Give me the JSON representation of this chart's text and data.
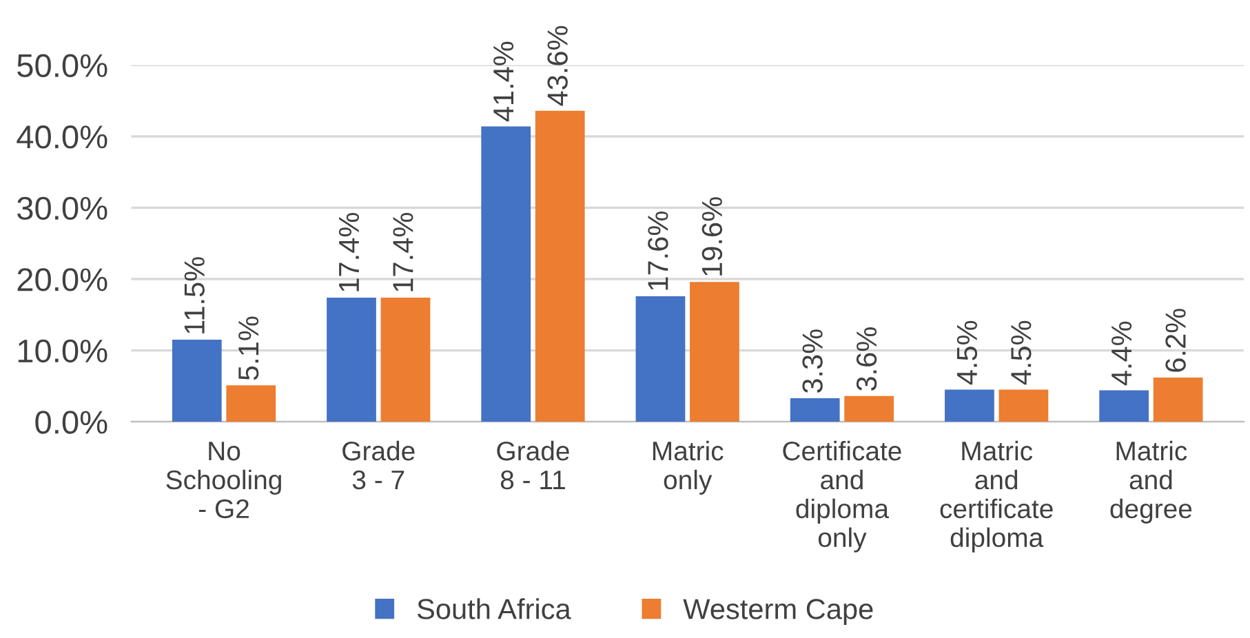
{
  "chart_data": {
    "type": "bar",
    "categories": [
      "No\nSchooling\n- G2",
      "Grade\n3 - 7",
      "Grade\n8 - 11",
      "Matric\nonly",
      "Certificate\nand\ndiploma\nonly",
      "Matric\nand\ncertificate\ndiploma",
      "Matric\nand\ndegree"
    ],
    "series": [
      {
        "name": "South Africa",
        "color": "#4472c4",
        "values": [
          11.5,
          17.4,
          41.4,
          17.6,
          3.3,
          4.5,
          4.4
        ],
        "value_labels": [
          "11.5%",
          "17.4%",
          "41.4%",
          "17.6%",
          "3.3%",
          "4.5%",
          "4.4%"
        ]
      },
      {
        "name": "Westerm Cape",
        "color": "#ed7d31",
        "values": [
          5.1,
          17.4,
          43.6,
          19.6,
          3.6,
          4.5,
          6.2
        ],
        "value_labels": [
          "5.1%",
          "17.4%",
          "43.6%",
          "19.6%",
          "3.6%",
          "4.5%",
          "6.2%"
        ]
      }
    ],
    "ylim": [
      0,
      50
    ],
    "yticks": [
      {
        "value": 0,
        "label": "0.0%"
      },
      {
        "value": 10,
        "label": "10.0%"
      },
      {
        "value": 20,
        "label": "20.0%"
      },
      {
        "value": 30,
        "label": "30.0%"
      },
      {
        "value": 40,
        "label": "40.0%"
      },
      {
        "value": 50,
        "label": "50.0%"
      }
    ],
    "grid": "y",
    "legend": "bottom"
  }
}
